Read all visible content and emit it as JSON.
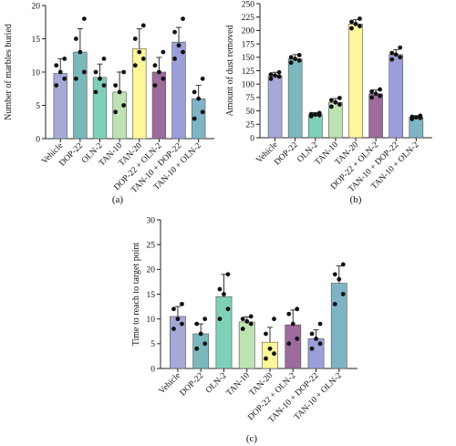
{
  "chart_data": [
    {
      "id": "a",
      "type": "bar",
      "panel_label": "(a)",
      "ylabel": "Number of marbles buried",
      "ylim": [
        0,
        20
      ],
      "yticks": [
        0,
        5,
        10,
        15,
        20
      ],
      "ytick_labels": [
        "0",
        "5",
        "10",
        "15",
        "20"
      ],
      "categories": [
        "Vehicle",
        "DOP-22",
        "OLN-2",
        "TAN-10",
        "TAN-20",
        "DOP-22 + OLN-2",
        "TAN-10 + DOP-22",
        "TAN-10 + OLN-2"
      ],
      "values": [
        9.8,
        13,
        9.2,
        7.0,
        13.5,
        10,
        14.5,
        6.0
      ],
      "errors": [
        2.2,
        3.5,
        2.0,
        3.0,
        3.0,
        2.2,
        2.2,
        2.0
      ],
      "points": [
        [
          8,
          9,
          10,
          11,
          12
        ],
        [
          9,
          10,
          13,
          15,
          18
        ],
        [
          7,
          8,
          9,
          10,
          12
        ],
        [
          4,
          5,
          7,
          8,
          10
        ],
        [
          11,
          12,
          13,
          15,
          17
        ],
        [
          8,
          9,
          10,
          11,
          13
        ],
        [
          12,
          13,
          14,
          16,
          18
        ],
        [
          3,
          4,
          6,
          7,
          9
        ]
      ],
      "colors": [
        "#a6a8d8",
        "#7bb8bc",
        "#7fd0b8",
        "#bde3b2",
        "#fdf69a",
        "#9d6b9c",
        "#9b9fd9",
        "#7fb4c6"
      ]
    },
    {
      "id": "b",
      "type": "bar",
      "panel_label": "(b)",
      "ylabel": "Amount of dust removed",
      "ylim": [
        0,
        250
      ],
      "yticks": [
        0,
        25,
        50,
        75,
        100,
        125,
        150,
        175,
        200,
        225,
        250
      ],
      "ytick_labels": [
        "0",
        "25",
        "50",
        "75",
        "100",
        "125",
        "150",
        "175",
        "200",
        "225",
        "250"
      ],
      "categories": [
        "Vehicle",
        "DOP-22",
        "OLN-2",
        "TAN-10",
        "TAN-20",
        "DOP-22 + OLN-2",
        "TAN-10 + DOP-22",
        "TAN-10 + OLN-2"
      ],
      "values": [
        116,
        147,
        43,
        66,
        212,
        82,
        155,
        38
      ],
      "errors": [
        6,
        8,
        4,
        7,
        8,
        7,
        9,
        3
      ],
      "points": [
        [
          110,
          114,
          116,
          118,
          122
        ],
        [
          140,
          144,
          147,
          150,
          154
        ],
        [
          40,
          42,
          43,
          44,
          46
        ],
        [
          58,
          62,
          66,
          70,
          74
        ],
        [
          204,
          208,
          212,
          216,
          222
        ],
        [
          75,
          78,
          82,
          86,
          90
        ],
        [
          146,
          150,
          155,
          158,
          168
        ],
        [
          35,
          37,
          38,
          39,
          41
        ]
      ],
      "colors": [
        "#a6a8d8",
        "#7bb8bc",
        "#7fd0b8",
        "#bde3b2",
        "#fdf69a",
        "#9d6b9c",
        "#9b9fd9",
        "#7fb4c6"
      ]
    },
    {
      "id": "c",
      "type": "bar",
      "panel_label": "(c)",
      "ylabel": "Time to reach to target point",
      "ylim": [
        0,
        30
      ],
      "yticks": [
        0,
        5,
        10,
        15,
        20,
        25,
        30
      ],
      "ytick_labels": [
        "0",
        "5",
        "10",
        "15",
        "20",
        "25",
        "30"
      ],
      "categories": [
        "Vehicle",
        "DOP-22",
        "OLN-2",
        "TAN-10",
        "TAN-20",
        "DOP-22 + OLN-2",
        "TAN-10 + DOP-22",
        "TAN-10 + OLN-2"
      ],
      "values": [
        10.5,
        7.0,
        14.5,
        9.4,
        5.3,
        8.8,
        6.0,
        17.2
      ],
      "errors": [
        2.0,
        2.0,
        4.5,
        1.0,
        3.0,
        3.0,
        1.8,
        3.5
      ],
      "points": [
        [
          8,
          9,
          10,
          12,
          13
        ],
        [
          4,
          5,
          7,
          9,
          10
        ],
        [
          10,
          12,
          15,
          16,
          19
        ],
        [
          8,
          9,
          9.5,
          10,
          10.5
        ],
        [
          2,
          3,
          4,
          7,
          10
        ],
        [
          5,
          6,
          9,
          11,
          12
        ],
        [
          4,
          5,
          6,
          7,
          9
        ],
        [
          13,
          15,
          18,
          19,
          21
        ]
      ],
      "colors": [
        "#a6a8d8",
        "#7bb8bc",
        "#7fd0b8",
        "#bde3b2",
        "#fdf69a",
        "#9d6b9c",
        "#9b9fd9",
        "#7fb4c6"
      ]
    }
  ]
}
